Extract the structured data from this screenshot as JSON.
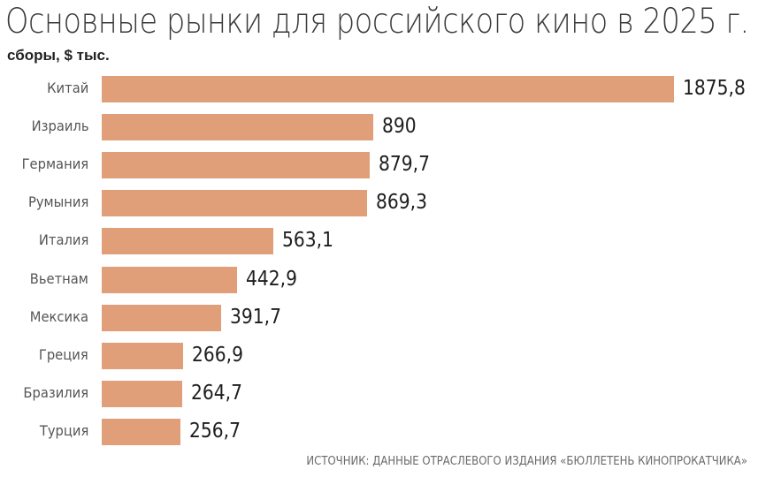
{
  "title": "Основные рынки для российского кино в 2025 г.",
  "subtitle": "сборы, $ тыс.",
  "source": "ИСТОЧНИК: ДАННЫЕ ОТРАСЛЕВОГО ИЗДАНИЯ «БЮЛЛЕТЕНЬ КИНОПРОКАТЧИКА»",
  "bar_color": "#e09f78",
  "chart_data": {
    "type": "bar",
    "orientation": "horizontal",
    "title": "Основные рынки для российского кино в 2025 г.",
    "subtitle": "сборы, $ тыс.",
    "xlabel": "",
    "ylabel": "",
    "grid": false,
    "legend": null,
    "categories": [
      "Китай",
      "Израиль",
      "Германия",
      "Румыния",
      "Италия",
      "Вьетнам",
      "Мексика",
      "Греция",
      "Бразилия",
      "Турция"
    ],
    "values": [
      1875.8,
      890,
      879.7,
      869.3,
      563.1,
      442.9,
      391.7,
      266.9,
      264.7,
      256.7
    ],
    "value_labels": [
      "1875,8",
      "890",
      "879,7",
      "869,3",
      "563,1",
      "442,9",
      "391,7",
      "266,9",
      "264,7",
      "256,7"
    ],
    "xlim": [
      0,
      1875.8
    ],
    "annotations": [
      "ИСТОЧНИК: ДАННЫЕ ОТРАСЛЕВОГО ИЗДАНИЯ «БЮЛЛЕТЕНЬ КИНОПРОКАТЧИКА»"
    ]
  }
}
